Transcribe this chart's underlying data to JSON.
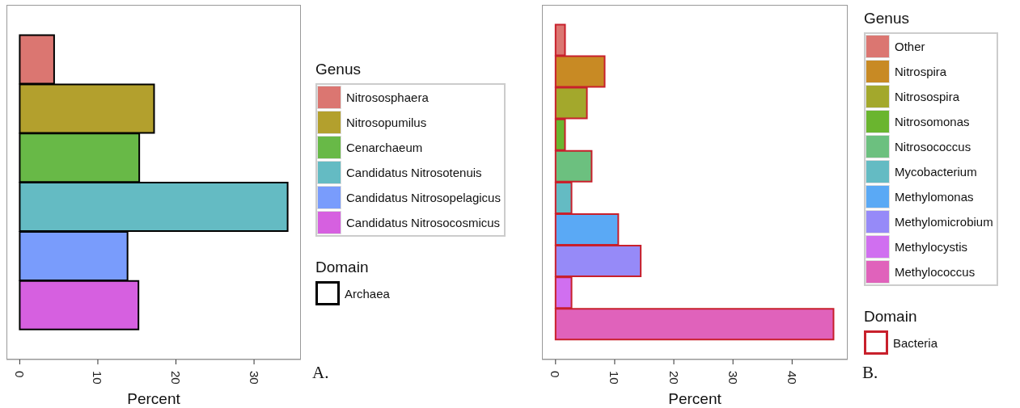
{
  "chart_data": [
    {
      "type": "bar",
      "orientation": "horizontal",
      "stacked": true,
      "categories": [
        null,
        null,
        null,
        null,
        null,
        null
      ],
      "series": [
        {
          "name": "Nitrososphaera",
          "color": "#db7671",
          "values": [
            4.4,
            null,
            null,
            null,
            null,
            null
          ]
        },
        {
          "name": "Nitrosopumilus",
          "color": "#b3a02d",
          "values": [
            null,
            17.2,
            null,
            null,
            null,
            null
          ]
        },
        {
          "name": "Cenarchaeum",
          "color": "#68b947",
          "values": [
            null,
            null,
            15.3,
            null,
            null,
            null
          ]
        },
        {
          "name": "Candidatus Nitrosotenuis",
          "color": "#64bbc3",
          "values": [
            null,
            null,
            null,
            34.3,
            null,
            null
          ]
        },
        {
          "name": "Candidatus Nitrosopelagicus",
          "color": "#799cfc",
          "values": [
            null,
            null,
            null,
            null,
            13.8,
            null
          ]
        },
        {
          "name": "Candidatus Nitrosocosmicus",
          "color": "#d660e0",
          "values": [
            null,
            null,
            null,
            null,
            null,
            15.2
          ]
        }
      ],
      "xlim": [
        -1.7,
        36
      ],
      "xticks": [
        0,
        10,
        20,
        30
      ],
      "xlabel": "Percent",
      "tick_labels": "x",
      "legend": "right",
      "legend_title": "Genus",
      "annotations": [
        "Domain",
        "Archaea",
        "A."
      ]
    },
    {
      "type": "bar",
      "orientation": "horizontal",
      "stacked": true,
      "categories": [
        null,
        null,
        null,
        null,
        null,
        null,
        null,
        null,
        null,
        null
      ],
      "series": [
        {
          "name": "Other",
          "color": "#db7671",
          "values": [
            1.6,
            null,
            null,
            null,
            null,
            null,
            null,
            null,
            null,
            null
          ]
        },
        {
          "name": "Nitrospira",
          "color": "#c88a24",
          "values": [
            null,
            8.3,
            null,
            null,
            null,
            null,
            null,
            null,
            null,
            null
          ]
        },
        {
          "name": "Nitrosospira",
          "color": "#a3a82c",
          "values": [
            null,
            null,
            5.3,
            null,
            null,
            null,
            null,
            null,
            null,
            null
          ]
        },
        {
          "name": "Nitrosomonas",
          "color": "#6ab52f",
          "values": [
            null,
            null,
            null,
            1.6,
            null,
            null,
            null,
            null,
            null,
            null
          ]
        },
        {
          "name": "Nitrosococcus",
          "color": "#6cc07f",
          "values": [
            null,
            null,
            null,
            null,
            6.1,
            null,
            null,
            null,
            null,
            null
          ]
        },
        {
          "name": "Mycobacterium",
          "color": "#64bbc3",
          "values": [
            null,
            null,
            null,
            null,
            null,
            2.7,
            null,
            null,
            null,
            null
          ]
        },
        {
          "name": "Methylomonas",
          "color": "#5aa9f5",
          "values": [
            null,
            null,
            null,
            null,
            null,
            null,
            10.6,
            null,
            null,
            null
          ]
        },
        {
          "name": "Methylomicrobium",
          "color": "#968af8",
          "values": [
            null,
            null,
            null,
            null,
            null,
            null,
            null,
            14.4,
            null,
            null
          ]
        },
        {
          "name": "Methylocystis",
          "color": "#d06ff0",
          "values": [
            null,
            null,
            null,
            null,
            null,
            null,
            null,
            null,
            2.7,
            null
          ]
        },
        {
          "name": "Methylococcus",
          "color": "#e062bb",
          "values": [
            null,
            null,
            null,
            null,
            null,
            null,
            null,
            null,
            null,
            47.0
          ]
        }
      ],
      "xlim": [
        -2.3,
        49.4
      ],
      "xticks": [
        0,
        10,
        20,
        30,
        40
      ],
      "xlabel": "Percent",
      "tick_labels": "x",
      "legend": "right",
      "legend_title": "Genus",
      "annotations": [
        "Domain",
        "Bacteria",
        "B."
      ]
    }
  ]
}
